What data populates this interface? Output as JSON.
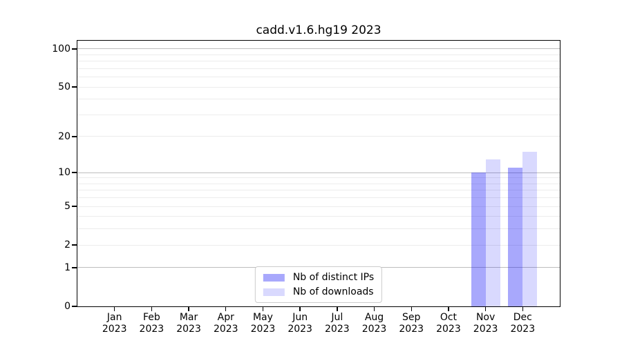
{
  "chart_data": {
    "type": "bar",
    "title": "cadd.v1.6.hg19 2023",
    "categories": [
      "Jan",
      "Feb",
      "Mar",
      "Apr",
      "May",
      "Jun",
      "Jul",
      "Aug",
      "Sep",
      "Oct",
      "Nov",
      "Dec"
    ],
    "year": "2023",
    "series": [
      {
        "name": "Nb of distinct IPs",
        "color_hex": "#0000f5",
        "alpha": 0.34,
        "values": [
          0,
          0,
          0,
          0,
          0,
          0,
          0,
          0,
          0,
          0,
          10,
          11
        ]
      },
      {
        "name": "Nb of downloads",
        "color_hex": "#0000f5",
        "alpha": 0.15,
        "values": [
          0,
          0,
          0,
          0,
          0,
          0,
          0,
          0,
          0,
          0,
          13,
          15
        ]
      }
    ],
    "xlabel": "",
    "ylabel": "",
    "yscale": "log1p",
    "yticks": [
      0,
      1,
      2,
      5,
      10,
      20,
      50,
      100
    ],
    "ylim": [
      0,
      116
    ],
    "grid": true,
    "grid_major_values": [
      1,
      10,
      100
    ],
    "grid_minor_values": [
      2,
      3,
      4,
      5,
      6,
      7,
      8,
      9,
      20,
      30,
      40,
      50,
      60,
      70,
      80,
      90
    ],
    "legend_position": "lower center",
    "colors": {
      "bar_distinct_ips": "#a8a8f8",
      "bar_downloads": "#dcdcf9",
      "grid_major": "#bdbdbd",
      "grid_minor": "#ececec",
      "axis": "#000000",
      "legend_border": "#cccccc",
      "background": "#ffffff"
    }
  }
}
